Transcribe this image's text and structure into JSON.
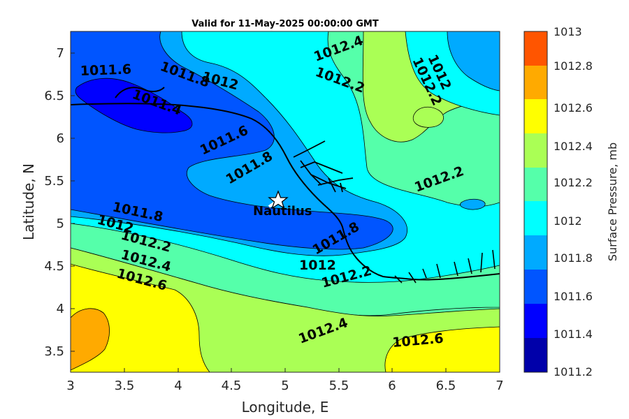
{
  "title": "Valid for 11-May-2025 00:00:00 GMT",
  "xlabel": "Longitude, E",
  "ylabel": "Latitude, N",
  "colorbar_label": "Surface Pressure, mb",
  "x_ticks": [
    "3",
    "3.5",
    "4",
    "4.5",
    "5",
    "5.5",
    "6",
    "6.5",
    "7"
  ],
  "y_ticks": [
    "7",
    "6.5",
    "6",
    "5.5",
    "5",
    "4.5",
    "4",
    "3.5"
  ],
  "colorbar_ticks": [
    "1013",
    "1012.8",
    "1012.6",
    "1012.4",
    "1012.2",
    "1012",
    "1011.8",
    "1011.6",
    "1011.4",
    "1011.2"
  ],
  "colorbar_colors": [
    "#ff5500",
    "#ffaa00",
    "#ffff00",
    "#aaff55",
    "#55ffaa",
    "#00ffff",
    "#00aaff",
    "#0055ff",
    "#0000ff",
    "#0000aa"
  ],
  "contour_labels": [
    "1011.6",
    "1011.8",
    "1012",
    "1011.4",
    "1012.4",
    "1012.2",
    "1012",
    "1012.2",
    "1011.6",
    "1011.8",
    "1012.2",
    "1011.8",
    "1012",
    "1012.2",
    "1012.4",
    "1012.6",
    "1011.8",
    "1012",
    "1012.2",
    "1012.4",
    "1012.6"
  ],
  "place_label": "Nautilus",
  "chart_data": {
    "type": "heatmap",
    "variable": "Surface Pressure",
    "units": "mb",
    "xlim": [
      3,
      7
    ],
    "ylim": [
      3.25,
      7.25
    ],
    "clim": [
      1011.2,
      1013
    ],
    "contour_levels": [
      1011.4,
      1011.6,
      1011.8,
      1012,
      1012.2,
      1012.4,
      1012.6,
      1012.8
    ],
    "marker": {
      "name": "Nautilus",
      "lon": 4.95,
      "lat": 5.27
    }
  }
}
